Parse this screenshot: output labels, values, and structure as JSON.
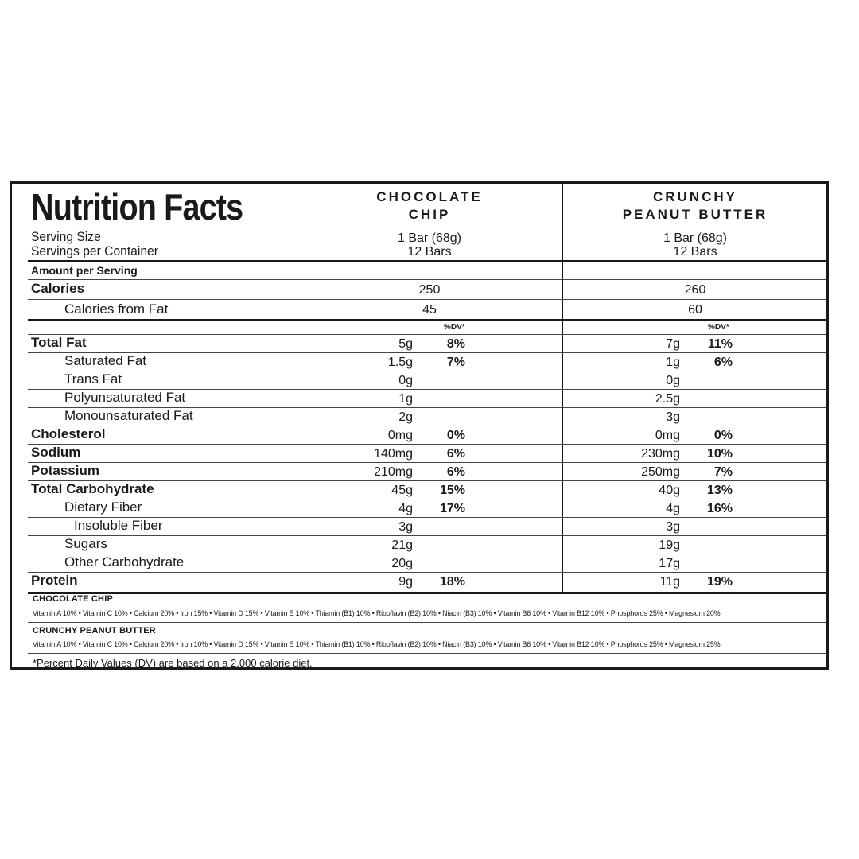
{
  "title": "Nutrition Facts",
  "columns": [
    {
      "name_line1": "CHOCOLATE",
      "name_line2": "CHIP",
      "serving_size": "1 Bar (68g)",
      "servings": "12 Bars"
    },
    {
      "name_line1": "CRUNCHY",
      "name_line2": "PEANUT BUTTER",
      "serving_size": "1 Bar (68g)",
      "servings": "12 Bars"
    }
  ],
  "serving_size_label": "Serving Size",
  "servings_label": "Servings per Container",
  "amount_per_serving": "Amount per Serving",
  "calories": {
    "label": "Calories",
    "values": [
      "250",
      "260"
    ]
  },
  "calories_fat": {
    "label": "Calories from Fat",
    "values": [
      "45",
      "60"
    ]
  },
  "dv_header": "%DV*",
  "nutrients": [
    {
      "label": "Total Fat",
      "bold": true,
      "indent": 0,
      "a": "5g",
      "a_dv": "8%",
      "b": "7g",
      "b_dv": "11%"
    },
    {
      "label": "Saturated Fat",
      "bold": false,
      "indent": 1,
      "a": "1.5g",
      "a_dv": "7%",
      "b": "1g",
      "b_dv": "6%"
    },
    {
      "label": "Trans Fat",
      "bold": false,
      "indent": 1,
      "a": "0g",
      "a_dv": "",
      "b": "0g",
      "b_dv": ""
    },
    {
      "label": "Polyunsaturated Fat",
      "bold": false,
      "indent": 1,
      "a": "1g",
      "a_dv": "",
      "b": "2.5g",
      "b_dv": ""
    },
    {
      "label": "Monounsaturated Fat",
      "bold": false,
      "indent": 1,
      "a": "2g",
      "a_dv": "",
      "b": "3g",
      "b_dv": ""
    },
    {
      "label": "Cholesterol",
      "bold": true,
      "indent": 0,
      "a": "0mg",
      "a_dv": "0%",
      "b": "0mg",
      "b_dv": "0%"
    },
    {
      "label": "Sodium",
      "bold": true,
      "indent": 0,
      "a": "140mg",
      "a_dv": "6%",
      "b": "230mg",
      "b_dv": "10%"
    },
    {
      "label": "Potassium",
      "bold": true,
      "indent": 0,
      "a": "210mg",
      "a_dv": "6%",
      "b": "250mg",
      "b_dv": "7%"
    },
    {
      "label": "Total Carbohydrate",
      "bold": true,
      "indent": 0,
      "a": "45g",
      "a_dv": "15%",
      "b": "40g",
      "b_dv": "13%"
    },
    {
      "label": "Dietary Fiber",
      "bold": false,
      "indent": 1,
      "a": "4g",
      "a_dv": "17%",
      "b": "4g",
      "b_dv": "16%"
    },
    {
      "label": "Insoluble Fiber",
      "bold": false,
      "indent": 2,
      "a": "3g",
      "a_dv": "",
      "b": "3g",
      "b_dv": ""
    },
    {
      "label": "Sugars",
      "bold": false,
      "indent": 1,
      "a": "21g",
      "a_dv": "",
      "b": "19g",
      "b_dv": ""
    },
    {
      "label": "Other Carbohydrate",
      "bold": false,
      "indent": 1,
      "a": "20g",
      "a_dv": "",
      "b": "17g",
      "b_dv": ""
    },
    {
      "label": "Protein",
      "bold": true,
      "indent": 0,
      "a": "9g",
      "a_dv": "18%",
      "b": "11g",
      "b_dv": "19%"
    }
  ],
  "vitamins": [
    {
      "label": "CHOCOLATE CHIP",
      "line": "Vitamin A 10% • Vitamin C 10% • Calcium 20% • Iron 15% • Vitamin D 15% • Vitamin E 10% • Thiamin (B1) 10% • Riboflavin (B2) 10% • Niacin (B3) 10% • Vitamin B6 10% • Vitamin B12 10% • Phosphorus 25% • Magnesium 20%"
    },
    {
      "label": "CRUNCHY PEANUT BUTTER",
      "line": "Vitamin A 10% • Vitamin C 10% • Calcium 20% • Iron 10% • Vitamin D 15% • Vitamin E 10% • Thiamin (B1) 10% • Riboflavin (B2) 10% • Niacin (B3) 10% • Vitamin B6 10% • Vitamin B12 10% • Phosphorus 25% • Magnesium 25%"
    }
  ],
  "footnote": "*Percent Daily Values (DV) are based on a 2,000 calorie diet."
}
